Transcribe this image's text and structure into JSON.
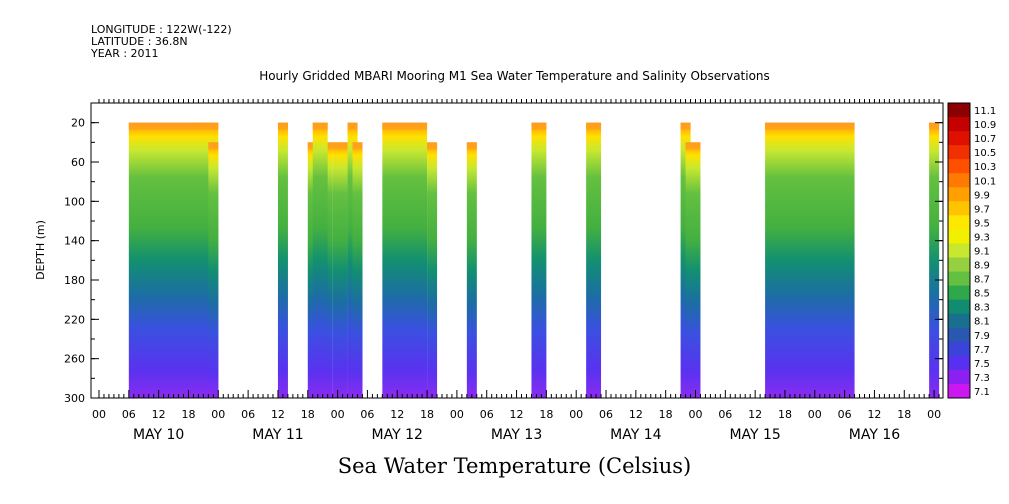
{
  "header": {
    "longitude": "LONGITUDE : 122W(-122)",
    "latitude": "LATITUDE : 36.8N",
    "year": "YEAR : 2011"
  },
  "chart_data": {
    "type": "heatmap",
    "title": "Hourly Gridded MBARI Mooring M1 Sea Water Temperature and Salinity Observations",
    "colorbar_label": "Sea Water Temperature (Celsius)",
    "ylabel": "DEPTH (m)",
    "ylim": [
      300,
      0
    ],
    "y_ticks": [
      20,
      60,
      100,
      140,
      180,
      220,
      260,
      300
    ],
    "x_hour_labels": [
      "00",
      "06",
      "12",
      "18",
      "00",
      "06",
      "12",
      "18",
      "00",
      "06",
      "12",
      "18",
      "00",
      "06",
      "12",
      "18",
      "00",
      "06",
      "12",
      "18",
      "00",
      "06",
      "12",
      "18",
      "00",
      "06",
      "12",
      "18",
      "00",
      "06",
      "12",
      "18",
      "00",
      "06",
      "12",
      "18",
      "00",
      "06",
      "12",
      "18",
      "00",
      "06",
      "12",
      "18"
    ],
    "x_day_labels": [
      "MAY 10",
      "MAY 11",
      "MAY 12",
      "MAY 13",
      "MAY 14",
      "MAY 15",
      "MAY 16"
    ],
    "colorbar_levels": [
      "11.1",
      "10.9",
      "10.7",
      "10.5",
      "10.3",
      "10.1",
      "9.9",
      "9.7",
      "9.5",
      "9.3",
      "9.1",
      "8.9",
      "8.7",
      "8.5",
      "8.3",
      "8.1",
      "7.9",
      "7.7",
      "7.5",
      "7.3",
      "7.1"
    ],
    "colorbar_colors": [
      "#8b0000",
      "#c40000",
      "#e01000",
      "#f03000",
      "#ff5000",
      "#ff7a00",
      "#ffa000",
      "#ffc400",
      "#ffe800",
      "#f0f000",
      "#c8e830",
      "#96d040",
      "#64c040",
      "#2ea84a",
      "#128c70",
      "#18708e",
      "#2a58b0",
      "#3a44d8",
      "#5830f0",
      "#8c20f0",
      "#cc18f0"
    ],
    "observation_blocks": [
      {
        "start_hour": 6,
        "end_hour": 24,
        "top_depth": 20
      },
      {
        "start_hour": 18,
        "end_hour": 22,
        "top_depth": 20
      },
      {
        "start_hour": 22,
        "end_hour": 24,
        "top_depth": 40
      },
      {
        "start_hour": 36,
        "end_hour": 38,
        "top_depth": 20
      },
      {
        "start_hour": 42,
        "end_hour": 47,
        "top_depth": 40
      },
      {
        "start_hour": 43,
        "end_hour": 46,
        "top_depth": 20
      },
      {
        "start_hour": 47,
        "end_hour": 50,
        "top_depth": 40
      },
      {
        "start_hour": 50,
        "end_hour": 51,
        "top_depth": 20
      },
      {
        "start_hour": 51,
        "end_hour": 52,
        "top_depth": 40
      },
      {
        "start_hour": 57,
        "end_hour": 66,
        "top_depth": 20
      },
      {
        "start_hour": 66,
        "end_hour": 66,
        "top_depth": 40
      },
      {
        "start_hour": 74,
        "end_hour": 76,
        "top_depth": 40
      },
      {
        "start_hour": 87,
        "end_hour": 90,
        "top_depth": 20
      },
      {
        "start_hour": 98,
        "end_hour": 101,
        "top_depth": 20
      },
      {
        "start_hour": 117,
        "end_hour": 118,
        "top_depth": 20
      },
      {
        "start_hour": 118,
        "end_hour": 121,
        "top_depth": 40
      },
      {
        "start_hour": 134,
        "end_hour": 152,
        "top_depth": 20
      },
      {
        "start_hour": 167,
        "end_hour": 168,
        "top_depth": 20
      }
    ]
  }
}
